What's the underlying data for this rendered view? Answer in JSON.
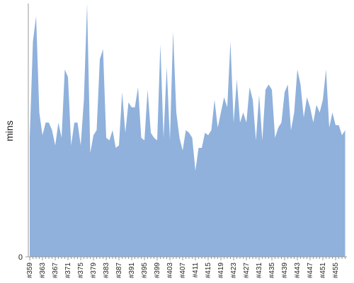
{
  "chart_data": {
    "type": "area",
    "y_label": "mins",
    "color": "#8fb1dc",
    "categories": [
      "#359",
      null,
      null,
      null,
      "#363",
      null,
      null,
      null,
      "#367",
      null,
      null,
      null,
      "#371",
      null,
      null,
      null,
      "#375",
      null,
      null,
      null,
      "#379",
      null,
      null,
      null,
      "#383",
      null,
      null,
      null,
      "#387",
      null,
      null,
      null,
      "#391",
      null,
      null,
      null,
      "#395",
      null,
      null,
      null,
      "#399",
      null,
      null,
      null,
      "#403",
      null,
      null,
      null,
      "#407",
      null,
      null,
      null,
      "#411",
      null,
      null,
      null,
      "#415",
      null,
      null,
      null,
      "#419",
      null,
      null,
      null,
      "#423",
      null,
      null,
      null,
      "#427",
      null,
      null,
      null,
      "#431",
      null,
      null,
      null,
      "#435",
      null,
      null,
      null,
      "#439",
      null,
      null,
      null,
      "#443",
      null,
      null,
      null,
      "#447",
      null,
      null,
      null,
      "#451",
      null,
      null,
      null,
      "#455",
      null,
      null,
      null
    ],
    "values": [
      47,
      85,
      95,
      57,
      48,
      53,
      53,
      50,
      44,
      53,
      47,
      74,
      71,
      44,
      53,
      53,
      44,
      62,
      100,
      41,
      48,
      50,
      78,
      82,
      47,
      46,
      50,
      43,
      44,
      65,
      49,
      61,
      59,
      59,
      67,
      47,
      46,
      66,
      49,
      47,
      46,
      84,
      47,
      75,
      46,
      89,
      57,
      47,
      42,
      50,
      49,
      47,
      34,
      43,
      43,
      49,
      48,
      50,
      62,
      51,
      57,
      63,
      59,
      85,
      53,
      70,
      53,
      57,
      53,
      67,
      62,
      46,
      64,
      46,
      66,
      68,
      66,
      47,
      51,
      53,
      65,
      68,
      50,
      57,
      74,
      68,
      55,
      63,
      59,
      53,
      60,
      57,
      62,
      74,
      51,
      57,
      52,
      52,
      48,
      50
    ],
    "ylim": [
      0,
      100
    ],
    "yticks": [
      0
    ]
  }
}
